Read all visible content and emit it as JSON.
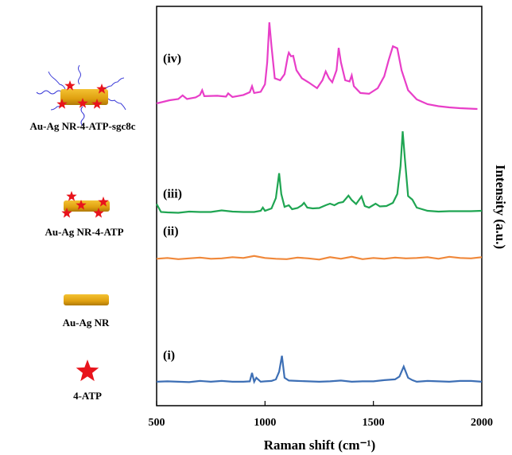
{
  "chart_data": {
    "type": "line",
    "x_label": "Raman shift (cm⁻¹)",
    "y_label": "Intensity (a.u.)",
    "xlim": [
      500,
      2000
    ],
    "xticks": [
      500,
      1000,
      1500,
      2000
    ],
    "ylim": [
      0,
      100
    ],
    "illustrations": [
      "Au-Ag NR-4-ATP-sgc8c",
      "Au-Ag NR-4-ATP",
      "Au-Ag NR",
      "4-ATP"
    ],
    "series": [
      {
        "name": "(iv)",
        "color": "#e83ec8",
        "x": [
          500,
          560,
          600,
          620,
          640,
          680,
          700,
          710,
          720,
          780,
          820,
          830,
          850,
          900,
          930,
          940,
          950,
          980,
          1000,
          1010,
          1020,
          1030,
          1045,
          1070,
          1090,
          1105,
          1110,
          1120,
          1130,
          1145,
          1170,
          1200,
          1240,
          1265,
          1280,
          1295,
          1310,
          1330,
          1340,
          1350,
          1370,
          1390,
          1400,
          1410,
          1440,
          1480,
          1520,
          1550,
          1570,
          1590,
          1610,
          1630,
          1660,
          1700,
          1750,
          1800,
          1850,
          1900,
          1980
        ],
        "values": [
          75.7,
          76.5,
          76.8,
          77.7,
          76.8,
          77.2,
          77.8,
          79,
          77.5,
          77.6,
          77.4,
          78.2,
          77.3,
          77.8,
          78.5,
          80,
          78.3,
          78.6,
          80.5,
          86,
          96,
          90,
          82,
          81.5,
          83,
          87.5,
          88.4,
          87.5,
          87.6,
          84,
          82,
          81,
          79.5,
          81.5,
          83.7,
          82,
          81,
          84,
          89.6,
          86,
          81.5,
          81.2,
          82.7,
          80,
          78.3,
          78.1,
          79.5,
          82.5,
          86.5,
          90,
          89.5,
          84,
          79,
          76.7,
          75.5,
          75,
          74.7,
          74.5,
          74.3
        ]
      },
      {
        "name": "(iii)",
        "color": "#1fa552",
        "x": [
          500,
          520,
          550,
          600,
          650,
          700,
          750,
          800,
          850,
          900,
          950,
          980,
          990,
          1000,
          1030,
          1050,
          1065,
          1075,
          1090,
          1110,
          1125,
          1150,
          1170,
          1180,
          1195,
          1220,
          1250,
          1280,
          1300,
          1320,
          1340,
          1360,
          1385,
          1400,
          1420,
          1445,
          1460,
          1480,
          1510,
          1530,
          1560,
          1590,
          1610,
          1625,
          1635,
          1645,
          1660,
          1680,
          1700,
          1750,
          1800,
          1850,
          1900,
          1950,
          2000
        ],
        "values": [
          50.5,
          48.5,
          48.4,
          48.3,
          48.6,
          48.5,
          48.5,
          48.9,
          48.6,
          48.5,
          48.5,
          48.8,
          49.6,
          48.8,
          49.4,
          52,
          58.2,
          53,
          49.8,
          50.2,
          49.2,
          49.5,
          50.2,
          50.8,
          49.6,
          49.4,
          49.5,
          50.2,
          50.6,
          50.2,
          50.8,
          51,
          52.6,
          51.5,
          50.5,
          52.4,
          50,
          49.6,
          50.6,
          49.9,
          50,
          50.8,
          53,
          60,
          68.7,
          62,
          52.5,
          51.6,
          49.6,
          48.8,
          48.6,
          48.7,
          48.7,
          48.7,
          48.8
        ]
      },
      {
        "name": "(ii)",
        "color": "#f0883a",
        "x": [
          500,
          550,
          600,
          650,
          700,
          750,
          800,
          850,
          900,
          950,
          1000,
          1050,
          1100,
          1150,
          1200,
          1250,
          1300,
          1350,
          1400,
          1450,
          1500,
          1550,
          1600,
          1650,
          1700,
          1750,
          1800,
          1850,
          1900,
          1950,
          2000
        ],
        "values": [
          36.8,
          37.0,
          36.7,
          36.9,
          37.1,
          36.8,
          36.9,
          37.2,
          37.0,
          37.5,
          37.0,
          36.8,
          36.7,
          37.1,
          36.9,
          36.6,
          37.2,
          36.8,
          37.3,
          36.7,
          37.0,
          36.8,
          37.1,
          36.9,
          37.0,
          37.2,
          36.8,
          37.3,
          37.0,
          36.9,
          37.2
        ]
      },
      {
        "name": "(i)",
        "color": "#3d6fb5",
        "x": [
          500,
          550,
          600,
          650,
          700,
          750,
          800,
          850,
          900,
          930,
          940,
          950,
          960,
          980,
          1000,
          1030,
          1050,
          1065,
          1078,
          1090,
          1110,
          1150,
          1200,
          1250,
          1300,
          1350,
          1400,
          1450,
          1500,
          1550,
          1600,
          1620,
          1640,
          1660,
          1680,
          1700,
          1750,
          1800,
          1850,
          1900,
          1950,
          2000
        ],
        "values": [
          6,
          6.1,
          6,
          5.9,
          6.2,
          6,
          6.2,
          6,
          6,
          6.1,
          8.2,
          6,
          7,
          6,
          6.1,
          6.2,
          6.6,
          8.5,
          12.5,
          7,
          6.3,
          6.2,
          6.1,
          6,
          6.1,
          6.3,
          6,
          6.1,
          6.1,
          6.4,
          6.6,
          7.3,
          9.8,
          7,
          6.4,
          6,
          6.2,
          6.1,
          6,
          6.2,
          6.2,
          6
        ]
      }
    ]
  }
}
